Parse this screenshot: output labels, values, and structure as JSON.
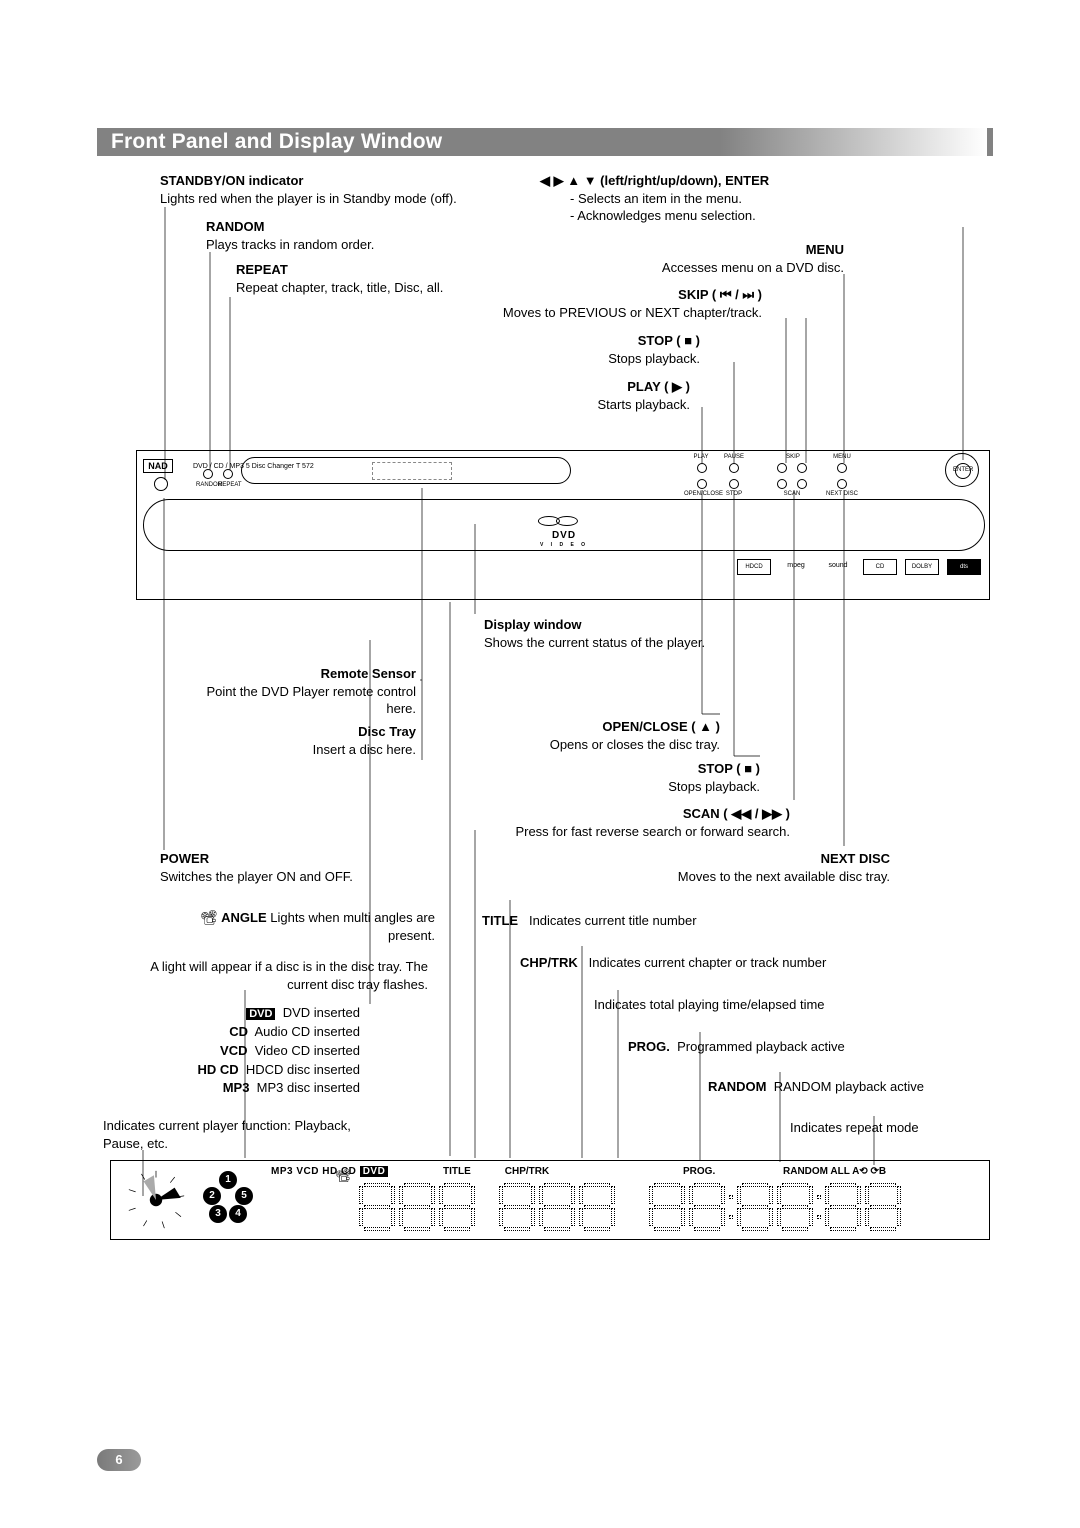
{
  "title": "Front Panel and Display Window",
  "page_number": "6",
  "panel": {
    "brand": "NAD",
    "model": "DVD / CD / MP3  5 Disc Changer T 572",
    "btn1": "RANDOM",
    "btn2": "REPEAT",
    "dvd": "DVD",
    "dvd_sub": "V I D E O",
    "logos": [
      "HDCD",
      "mpeg",
      "sound",
      "CD",
      "DOLBY",
      "dts"
    ],
    "top_btn": [
      "PLAY",
      "PAUSE",
      "SKIP",
      "SKIP",
      "MENU",
      "OPEN/CLOSE",
      "STOP",
      "SCAN",
      "NEXT DISC",
      "ENTER"
    ]
  },
  "annotations": {
    "standby_t": "STANDBY/ON indicator",
    "standby_d": "Lights red when the player is in Standby mode (off).",
    "random_t": "RANDOM",
    "random_d": "Plays tracks in random order.",
    "repeat_t": "REPEAT",
    "repeat_d": "Repeat chapter, track, title, Disc, all.",
    "arrows_t": "◀ ▶ ▲ ▼  (left/right/up/down), ENTER",
    "arrows_d1": "- Selects an item in the menu.",
    "arrows_d2": "- Acknowledges menu selection.",
    "menu_t": "MENU",
    "menu_d": "Accesses menu on a DVD disc.",
    "skip_t": "SKIP ( ⏮ / ⏭ )",
    "skip_d": "Moves to PREVIOUS or NEXT chapter/track.",
    "stop_t": "STOP ( ■ )",
    "stop_d": "Stops playback.",
    "play_t": "PLAY ( ▶ )",
    "play_d": "Starts playback.",
    "displaywin_t": "Display window",
    "displaywin_d": "Shows the current status of the player.",
    "remote_t": "Remote Sensor",
    "remote_d": "Point the DVD Player remote control here.",
    "tray_t": "Disc Tray",
    "tray_d": "Insert a disc here.",
    "open_t": "OPEN/CLOSE ( ▲ )",
    "open_d": "Opens or closes the disc tray.",
    "stop2_t": "STOP ( ■ )",
    "stop2_d": "Stops playback.",
    "scan_t": "SCAN ( ◀◀ / ▶▶ )",
    "scan_d": "Press for fast reverse search or forward search.",
    "power_t": "POWER",
    "power_d": "Switches the player ON and OFF.",
    "next_t": "NEXT DISC",
    "next_d": "Moves to the next available disc tray.",
    "angle_t": "ANGLE",
    "angle_d": "Lights when multi angles are present.",
    "disc_light_d": "A light will appear if a disc is in the disc tray. The current disc tray flashes.",
    "dvd_ins": "DVD inserted",
    "cd_ins": "Audio CD inserted",
    "vcd_ins": "Video CD inserted",
    "hdcd_ins": "HDCD disc inserted",
    "mp3_ins": "MP3 disc inserted",
    "cd_l": "CD",
    "vcd_l": "VCD",
    "hdcd_l": "HD CD",
    "mp3_l": "MP3",
    "dvd_l": "DVD",
    "func_d": "Indicates current player function: Playback, Pause, etc.",
    "title_t": "TITLE",
    "title_d": "Indicates current title number",
    "chp_t": "CHP/TRK",
    "chp_d": "Indicates current chapter or track number",
    "time_d": "Indicates total playing time/elapsed time",
    "prog_t": "PROG.",
    "prog_d": "Programmed playback active",
    "randplay_t": "RANDOM",
    "randplay_d": "RANDOM playback active",
    "rptmode_d": "Indicates repeat mode"
  },
  "display": {
    "strip": "MP3 VCD HD CD",
    "strip_dvd": "DVD",
    "title": "TITLE",
    "chp": "CHP/TRK",
    "prog": "PROG.",
    "random": "RANDOM  ALL  A⟲ ⟳B",
    "discs": [
      "1",
      "2",
      "3",
      "4",
      "5"
    ]
  }
}
